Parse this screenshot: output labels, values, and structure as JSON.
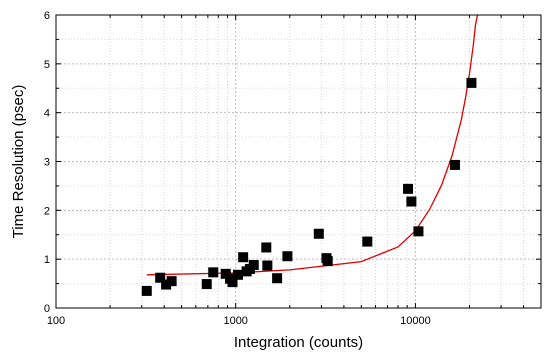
{
  "chart_data": {
    "type": "scatter",
    "title": "",
    "xlabel": "Integration (counts)",
    "ylabel": "Time Resolution (psec)",
    "x_scale": "log",
    "xlim": [
      100,
      50000
    ],
    "ylim": [
      0,
      6
    ],
    "grid": true,
    "x_tick_values": [
      100,
      1000,
      10000
    ],
    "x_tick_labels": [
      "100",
      "1000",
      "10000"
    ],
    "y_tick_values": [
      0,
      1,
      2,
      3,
      4,
      5,
      6
    ],
    "y_tick_labels": [
      "0",
      "1",
      "2",
      "3",
      "4",
      "5",
      "6"
    ],
    "marker_color": "#000000",
    "fit_color": "#dd0000",
    "series": [
      {
        "kind": "points",
        "x": [
          320,
          380,
          410,
          440,
          690,
          750,
          880,
          930,
          960,
          1030,
          1100,
          1150,
          1200,
          1260,
          1480,
          1500,
          1700,
          1940,
          2900,
          3200,
          3250,
          5400,
          9100,
          9500,
          10400,
          16600,
          20500
        ],
        "y": [
          0.35,
          0.62,
          0.48,
          0.55,
          0.49,
          0.73,
          0.7,
          0.6,
          0.53,
          0.68,
          1.04,
          0.75,
          0.8,
          0.88,
          1.24,
          0.87,
          0.61,
          1.06,
          1.52,
          1.02,
          0.96,
          1.36,
          2.44,
          2.18,
          1.57,
          2.93,
          4.61
        ]
      },
      {
        "kind": "fit",
        "x": [
          320,
          1000,
          2000,
          5000,
          8000,
          10000,
          12000,
          14000,
          16000,
          18000,
          19000,
          20000,
          21000,
          21600,
          22300
        ],
        "y": [
          0.68,
          0.72,
          0.78,
          0.95,
          1.25,
          1.58,
          2.02,
          2.52,
          3.12,
          3.85,
          4.3,
          4.8,
          5.38,
          5.8,
          6.05
        ]
      }
    ]
  }
}
